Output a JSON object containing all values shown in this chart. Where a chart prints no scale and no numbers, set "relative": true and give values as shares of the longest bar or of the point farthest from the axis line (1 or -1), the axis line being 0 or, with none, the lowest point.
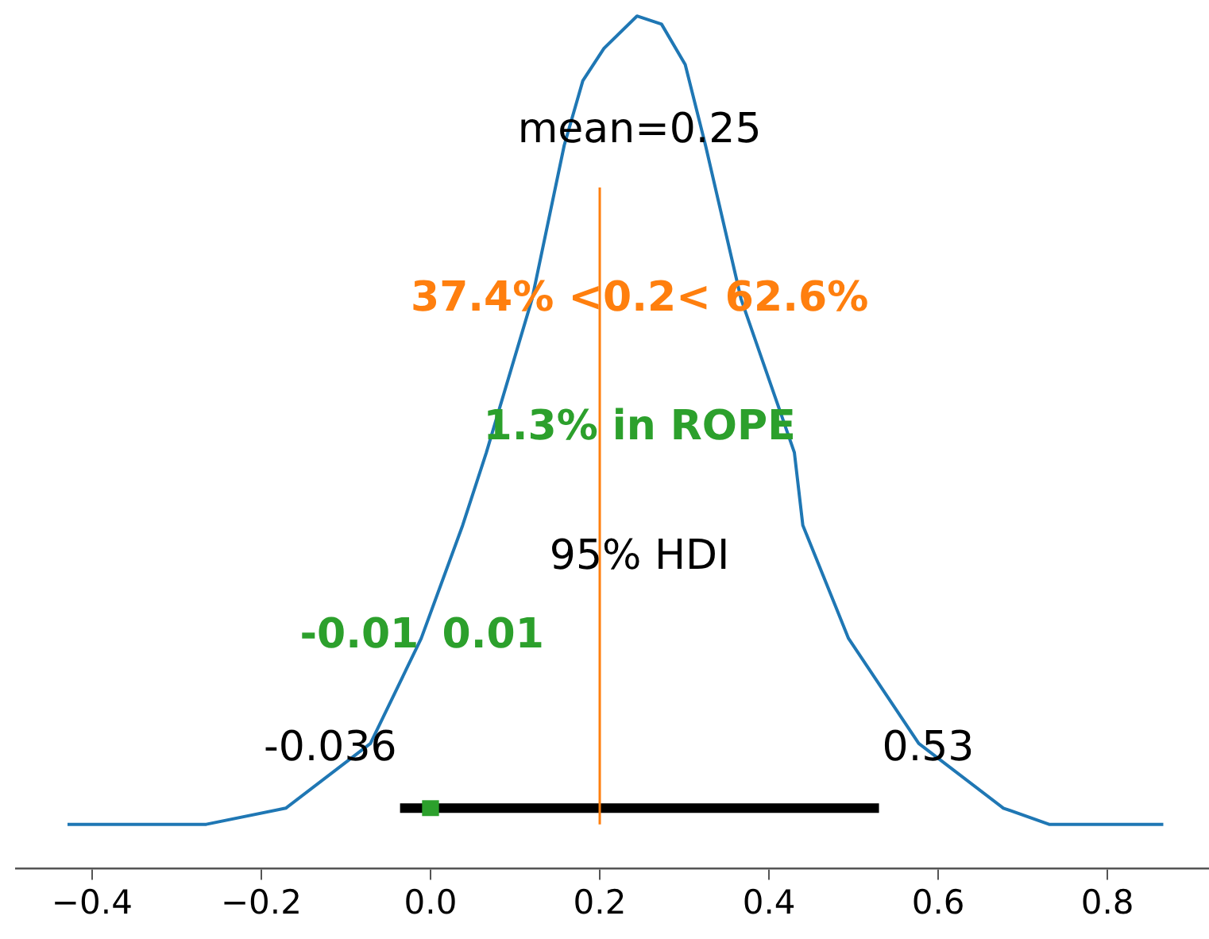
{
  "chart_data": {
    "type": "line",
    "relative": true,
    "series": [
      {
        "type": "line",
        "color": "#1f77b4",
        "x": [
          -0.429,
          -0.265,
          -0.171,
          -0.071,
          -0.011,
          0.038,
          0.066,
          0.12,
          0.158,
          0.18,
          0.205,
          0.244,
          0.273,
          0.301,
          0.325,
          0.367,
          0.43,
          0.44,
          0.494,
          0.577,
          0.677,
          0.731,
          0.866
        ],
        "values": [
          0,
          0,
          0.02,
          0.1,
          0.23,
          0.37,
          0.46,
          0.65,
          0.84,
          0.92,
          0.96,
          1,
          0.99,
          0.94,
          0.84,
          0.65,
          0.46,
          0.37,
          0.23,
          0.1,
          0.02,
          0,
          0
        ]
      },
      {
        "type": "line",
        "color": "#000000",
        "x": [
          -0.036,
          0.53
        ],
        "values": [
          0.02,
          0.02
        ]
      },
      {
        "type": "line",
        "name": "1.3% in ROPE",
        "color": "#2ca02c",
        "x": [
          -0.01,
          0.01
        ],
        "values": [
          0.02,
          0.02
        ]
      }
    ],
    "xlim": [
      -0.49,
      0.92
    ],
    "xticks": [
      {
        "value": -0.4,
        "label": "−0.4"
      },
      {
        "value": -0.2,
        "label": "−0.2"
      },
      {
        "value": 0,
        "label": "0.0"
      },
      {
        "value": 0.2,
        "label": "0.2"
      },
      {
        "value": 0.4,
        "label": "0.4"
      },
      {
        "value": 0.6,
        "label": "0.6"
      },
      {
        "value": 0.8,
        "label": "0.8"
      }
    ],
    "tick_labels": "x",
    "grid": false,
    "legend": false,
    "marker": "none",
    "line_style": "solid",
    "ref_lines": [
      {
        "axis": "x",
        "value": 0.2,
        "label": "37.4% <0.2< 62.6%",
        "color": "#ff7f0e"
      }
    ],
    "annotations": [
      "mean=0.25",
      "95% HDI",
      {
        "text": "-0.036",
        "x": -0.036,
        "y": 0.02
      },
      {
        "text": "0.53",
        "x": 0.53,
        "y": 0.02
      },
      "-0.01",
      "0.01"
    ]
  }
}
